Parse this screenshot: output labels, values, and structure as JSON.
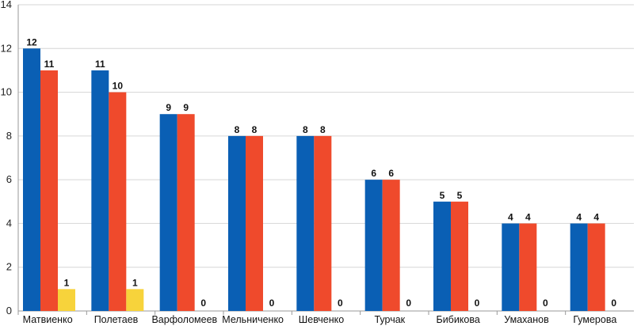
{
  "chart_data": {
    "type": "bar",
    "categories": [
      "Матвиенко",
      "Полетаев",
      "Варфоломеев",
      "Мельниченко",
      "Шевченко",
      "Турчак",
      "Бибикова",
      "Умаханов",
      "Гумерова"
    ],
    "series": [
      {
        "values": [
          12,
          11,
          9,
          8,
          8,
          6,
          5,
          4,
          4
        ],
        "color": "#0a5fb4"
      },
      {
        "values": [
          11,
          10,
          9,
          8,
          8,
          6,
          5,
          4,
          4
        ],
        "color": "#ef4a2c"
      },
      {
        "values": [
          1,
          1,
          0,
          0,
          0,
          0,
          0,
          0,
          0
        ],
        "color": "#f7d33b"
      }
    ],
    "ylim": [
      0,
      14
    ],
    "yticks": [
      "0",
      "2",
      "4",
      "6",
      "8",
      "10",
      "12",
      "14"
    ],
    "grid": true,
    "data_labels": true,
    "title": "",
    "xlabel": "",
    "ylabel": ""
  }
}
